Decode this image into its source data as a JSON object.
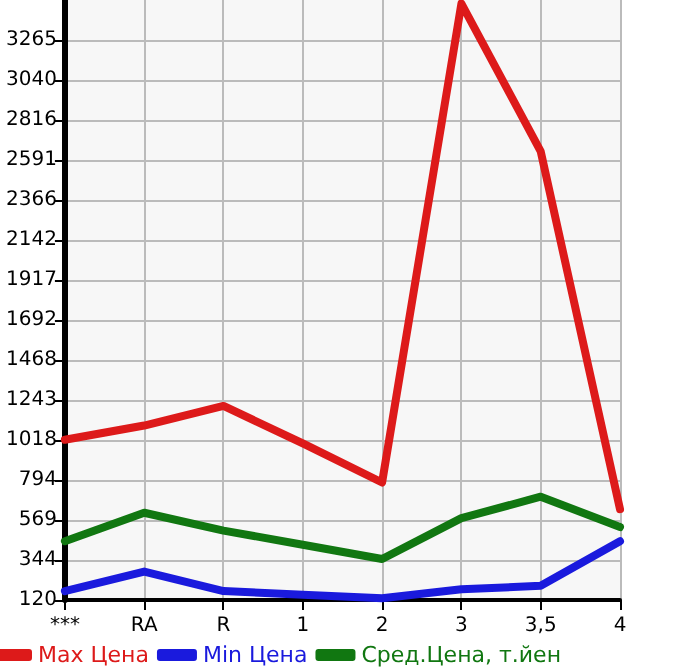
{
  "chart_data": {
    "type": "line",
    "categories": [
      "***",
      "RA",
      "R",
      "1",
      "2",
      "3",
      "3,5",
      "4"
    ],
    "series": [
      {
        "name": "Max Цена",
        "color": "#dd1a1a",
        "values": [
          1020,
          1100,
          1210,
          1000,
          780,
          3470,
          2640,
          630
        ]
      },
      {
        "name": "Min Цена",
        "color": "#1a1add",
        "values": [
          170,
          280,
          170,
          150,
          130,
          180,
          200,
          450
        ]
      },
      {
        "name": "Сред.Цена, т.йен",
        "color": "#117711",
        "values": [
          450,
          610,
          510,
          430,
          350,
          580,
          700,
          530
        ]
      }
    ],
    "ylim": [
      120,
      3490
    ],
    "yticks": [
      120,
      344,
      569,
      794,
      1018,
      1243,
      1468,
      1692,
      1917,
      2142,
      2366,
      2591,
      2816,
      3040,
      3265
    ],
    "grid": true,
    "legend": "bottom",
    "marker": "none",
    "line_style": "solid"
  }
}
